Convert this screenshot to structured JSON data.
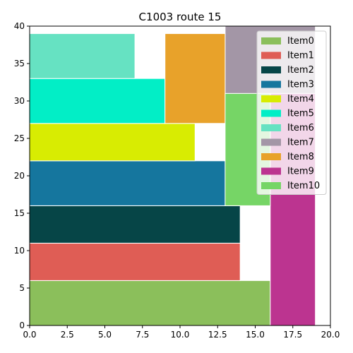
{
  "chart_data": {
    "type": "bar",
    "title": "C1003 route 15",
    "xlabel": "",
    "ylabel": "",
    "xlim": [
      0,
      20
    ],
    "ylim": [
      0,
      40
    ],
    "x_ticks": [
      "0.0",
      "2.5",
      "5.0",
      "7.5",
      "10.0",
      "12.5",
      "15.0",
      "17.5",
      "20.0"
    ],
    "y_ticks": [
      "0",
      "5",
      "10",
      "15",
      "20",
      "25",
      "30",
      "35",
      "40"
    ],
    "grid": false,
    "legend_position": "top-right",
    "series": [
      {
        "name": "Item0",
        "color": "#8bbf5b",
        "x0": 0,
        "x1": 16,
        "y0": 0,
        "y1": 6
      },
      {
        "name": "Item1",
        "color": "#df5d55",
        "x0": 0,
        "x1": 14,
        "y0": 6,
        "y1": 11
      },
      {
        "name": "Item2",
        "color": "#064547",
        "x0": 0,
        "x1": 14,
        "y0": 11,
        "y1": 16
      },
      {
        "name": "Item3",
        "color": "#15769e",
        "x0": 0,
        "x1": 13,
        "y0": 16,
        "y1": 22
      },
      {
        "name": "Item4",
        "color": "#d8ec02",
        "x0": 0,
        "x1": 11,
        "y0": 22,
        "y1": 27
      },
      {
        "name": "Item5",
        "color": "#02eec6",
        "x0": 0,
        "x1": 9,
        "y0": 27,
        "y1": 33
      },
      {
        "name": "Item6",
        "color": "#66e2c2",
        "x0": 0,
        "x1": 7,
        "y0": 33,
        "y1": 39
      },
      {
        "name": "Item7",
        "color": "#a396a6",
        "x0": 13,
        "x1": 19,
        "y0": 31,
        "y1": 40
      },
      {
        "name": "Item8",
        "color": "#e8a22a",
        "x0": 9,
        "x1": 13,
        "y0": 27,
        "y1": 39
      },
      {
        "name": "Item9",
        "color": "#bc3490",
        "x0": 16,
        "x1": 19,
        "y0": 0,
        "y1": 31
      },
      {
        "name": "Item10",
        "color": "#76d566",
        "x0": 13,
        "x1": 16,
        "y0": 16,
        "y1": 31
      }
    ]
  }
}
